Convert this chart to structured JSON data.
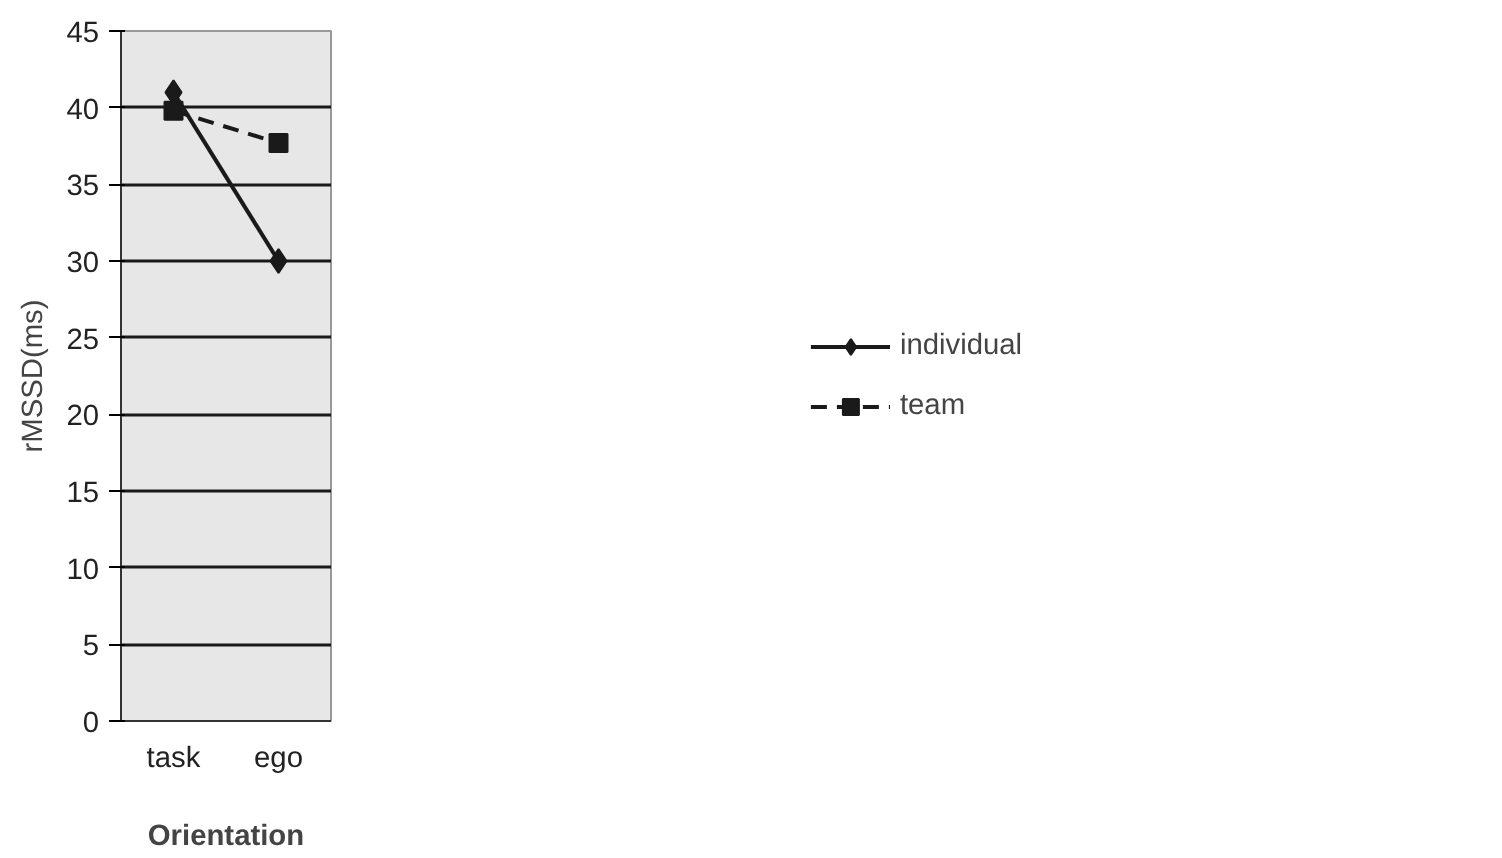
{
  "chart_data": {
    "type": "line",
    "xlabel": "Orientation",
    "ylabel": "rMSSD(ms)",
    "categories": [
      "task",
      "ego"
    ],
    "ylim": [
      0,
      45
    ],
    "yticks": [
      0,
      5,
      10,
      15,
      20,
      25,
      30,
      35,
      40,
      45
    ],
    "grid": "y",
    "legend": "right",
    "series": [
      {
        "name": "individual",
        "color": "#1a1a1a",
        "values": [
          41,
          30
        ],
        "marker": "diamond",
        "line_style": "solid"
      },
      {
        "name": "team",
        "color": "#1a1a1a",
        "values": [
          39.8,
          37.7
        ],
        "marker": "square",
        "line_style": "dashed"
      }
    ]
  }
}
